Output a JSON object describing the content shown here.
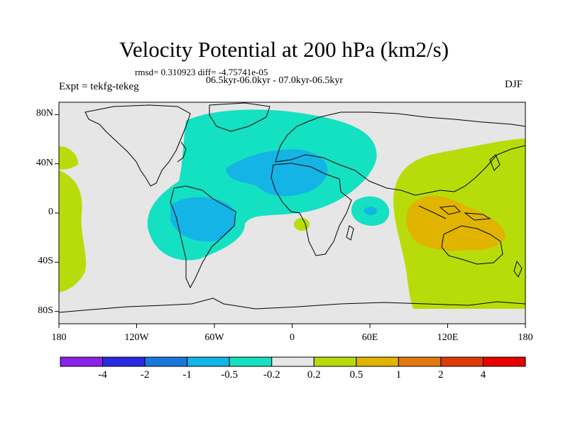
{
  "title": "Velocity Potential at 200 hPa (km2/s)",
  "stats": "rmsd= 0.310923 diff= -4.75741e-05",
  "period": "06.5kyr-06.0kyr - 07.0kyr-06.5kyr",
  "experiment": "Expt = tekfg-tekeg",
  "season": "DJF",
  "lat_ticks": [
    {
      "label": "80N",
      "value": 80
    },
    {
      "label": "40N",
      "value": 40
    },
    {
      "label": "0",
      "value": 0
    },
    {
      "label": "40S",
      "value": -40
    },
    {
      "label": "80S",
      "value": -80
    }
  ],
  "lon_ticks": [
    {
      "label": "180",
      "value": -180
    },
    {
      "label": "120W",
      "value": -120
    },
    {
      "label": "60W",
      "value": -60
    },
    {
      "label": "0",
      "value": 0
    },
    {
      "label": "60E",
      "value": 60
    },
    {
      "label": "120E",
      "value": 120
    },
    {
      "label": "180",
      "value": 180
    }
  ],
  "colorbar": {
    "colors": [
      "#8a22e8",
      "#2a2ae0",
      "#1a78dc",
      "#14b4e6",
      "#14e0c2",
      "#e6e6e6",
      "#b8dc0a",
      "#e0b400",
      "#e07a10",
      "#e03a0a",
      "#e80000"
    ],
    "labels": [
      "-4",
      "-2",
      "-1",
      "-0.5",
      "-0.2",
      "0.2",
      "0.5",
      "1",
      "2",
      "4"
    ]
  },
  "palette": {
    "ocean": "#e6e6e6",
    "neg_weak": "#14e0c2",
    "neg_mid": "#14b4e6",
    "pos_weak": "#b8dc0a",
    "pos_mid": "#e0b400",
    "coast": "#000000"
  }
}
